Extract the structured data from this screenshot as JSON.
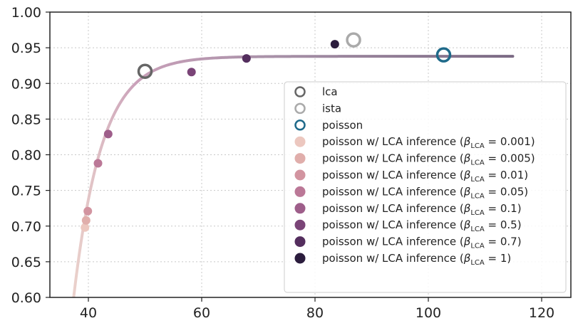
{
  "chart_data": {
    "type": "scatter",
    "title": "",
    "xlabel": "",
    "ylabel": "",
    "xlim": [
      33,
      125
    ],
    "ylim": [
      0.6,
      1.0
    ],
    "grid": true,
    "legend_placement": "lower-right",
    "x_ticks": [
      40,
      60,
      80,
      100,
      120
    ],
    "y_ticks": [
      0.6,
      0.65,
      0.7,
      0.75,
      0.8,
      0.85,
      0.9,
      0.95,
      1.0
    ],
    "x_tick_labels": [
      "40",
      "60",
      "80",
      "100",
      "120"
    ],
    "y_tick_labels": [
      "0.60",
      "0.65",
      "0.70",
      "0.75",
      "0.80",
      "0.85",
      "0.90",
      "0.95",
      "1.00"
    ],
    "series": [
      {
        "name": "lca",
        "marker": "open-circle",
        "color": "#666666",
        "points": [
          {
            "x": 50.0,
            "y": 0.917
          }
        ]
      },
      {
        "name": "ista",
        "marker": "open-circle",
        "color": "#aaaaaa",
        "points": [
          {
            "x": 86.8,
            "y": 0.961
          }
        ]
      },
      {
        "name": "poisson",
        "marker": "open-circle",
        "color": "#1f6a8a",
        "points": [
          {
            "x": 102.7,
            "y": 0.94
          }
        ]
      },
      {
        "name": "poisson w/ LCA inference",
        "beta": "0.001",
        "marker": "filled-circle",
        "color": "#ecc7bf",
        "points": [
          {
            "x": 39.4,
            "y": 0.698
          }
        ]
      },
      {
        "name": "poisson w/ LCA inference",
        "beta": "0.005",
        "marker": "filled-circle",
        "color": "#e0aeab",
        "points": [
          {
            "x": 39.6,
            "y": 0.708
          }
        ]
      },
      {
        "name": "poisson w/ LCA inference",
        "beta": "0.01",
        "marker": "filled-circle",
        "color": "#d294a0",
        "points": [
          {
            "x": 39.9,
            "y": 0.721
          }
        ]
      },
      {
        "name": "poisson w/ LCA inference",
        "beta": "0.05",
        "marker": "filled-circle",
        "color": "#bb7897",
        "points": [
          {
            "x": 41.7,
            "y": 0.788
          }
        ]
      },
      {
        "name": "poisson w/ LCA inference",
        "beta": "0.1",
        "marker": "filled-circle",
        "color": "#9e5e8a",
        "points": [
          {
            "x": 43.5,
            "y": 0.829
          }
        ]
      },
      {
        "name": "poisson w/ LCA inference",
        "beta": "0.5",
        "marker": "filled-circle",
        "color": "#7a4477",
        "points": [
          {
            "x": 58.2,
            "y": 0.916
          }
        ]
      },
      {
        "name": "poisson w/ LCA inference",
        "beta": "0.7",
        "marker": "filled-circle",
        "color": "#542e5e",
        "points": [
          {
            "x": 67.9,
            "y": 0.935
          }
        ]
      },
      {
        "name": "poisson w/ LCA inference",
        "beta": "1",
        "marker": "filled-circle",
        "color": "#2b1c3d",
        "points": [
          {
            "x": 83.5,
            "y": 0.955
          }
        ]
      }
    ],
    "fit_curve": {
      "plateau": 0.938,
      "x_start": 37.4,
      "x_end": 115.0,
      "gradient_colors": [
        "#ecd3cc",
        "#c9a0b9",
        "#a891a8",
        "#7b6a84"
      ]
    },
    "legend": {
      "prefix": "poisson w/ LCA inference (",
      "beta_symbol": "β",
      "beta_subscript": "LCA",
      "equals": " = ",
      "suffix": ")"
    }
  }
}
